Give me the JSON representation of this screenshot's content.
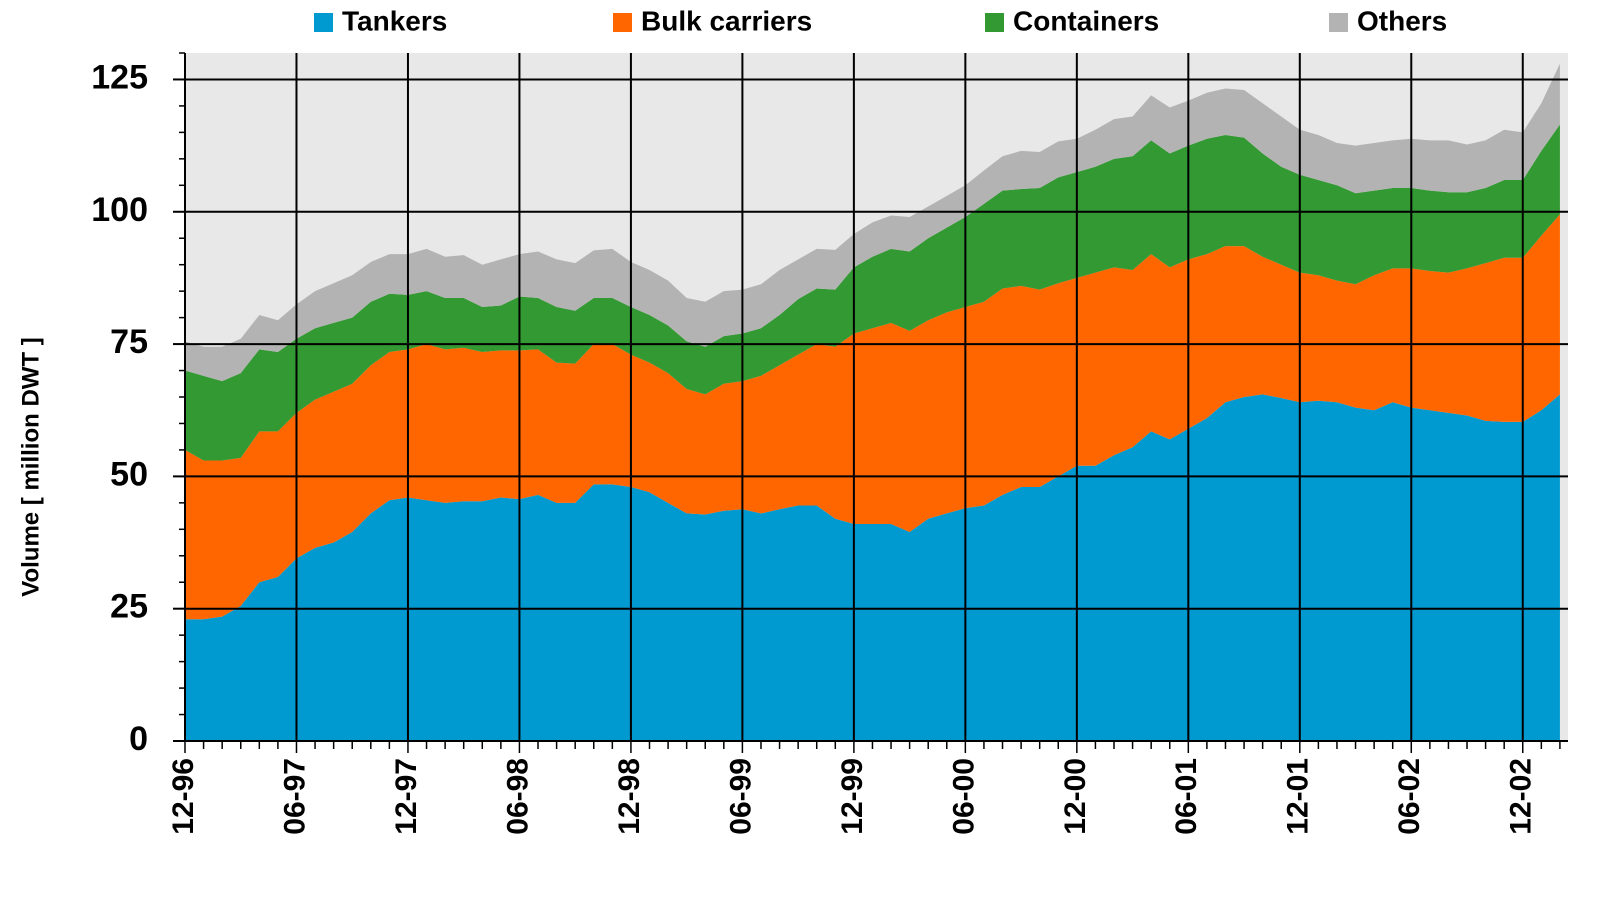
{
  "chart_data": {
    "type": "stacked_area",
    "y_label": "Volume [ million DWT ]",
    "categories": [
      "12-96",
      null,
      null,
      null,
      null,
      null,
      "06-97",
      null,
      null,
      null,
      null,
      null,
      "12-97",
      null,
      null,
      null,
      null,
      null,
      "06-98",
      null,
      null,
      null,
      null,
      null,
      "12-98",
      null,
      null,
      null,
      null,
      null,
      "06-99",
      null,
      null,
      null,
      null,
      null,
      "12-99",
      null,
      null,
      null,
      null,
      null,
      "06-00",
      null,
      null,
      null,
      null,
      null,
      "12-00",
      null,
      null,
      null,
      null,
      null,
      "06-01",
      null,
      null,
      null,
      null,
      null,
      "12-01",
      null,
      null,
      null,
      null,
      null,
      "06-02",
      null,
      null,
      null,
      null,
      null,
      "12-02",
      null,
      null
    ],
    "series": [
      {
        "name": "Tankers",
        "color": "#0099d0",
        "values": [
          23,
          23,
          23.5,
          25.5,
          30,
          31,
          34.5,
          36.5,
          37.5,
          39.5,
          43,
          45.5,
          46,
          45.5,
          45,
          45.3,
          45.3,
          46,
          45.7,
          46.5,
          45,
          45,
          48.5,
          48.5,
          48,
          47,
          45,
          43,
          42.8,
          43.5,
          43.8,
          43,
          43.8,
          44.5,
          44.5,
          42,
          41,
          41,
          41,
          39.5,
          42,
          43,
          44,
          44.5,
          46.5,
          48,
          48,
          50,
          52,
          52,
          54,
          55.5,
          58.5,
          57,
          59,
          61,
          64,
          65,
          65.5,
          64.8,
          64,
          64.3,
          64,
          63,
          62.5,
          64,
          63,
          62.5,
          62,
          61.5,
          60.5,
          60.3,
          60.3,
          62.5,
          65.5
        ]
      },
      {
        "name": "Bulk carriers",
        "color": "#ff6600",
        "values": [
          32,
          30,
          29.5,
          28,
          28.5,
          27.5,
          27.5,
          28,
          28.5,
          28,
          28,
          28,
          28,
          29.5,
          29,
          29,
          28.2,
          27.8,
          28.1,
          27.5,
          26.5,
          26.3,
          26.5,
          26.5,
          25,
          24.5,
          24.5,
          23.5,
          22.7,
          24,
          24.2,
          26,
          27.2,
          28.5,
          30.5,
          32.5,
          36,
          37,
          38,
          38,
          37.5,
          38,
          38,
          38.5,
          39,
          38,
          37.3,
          36.5,
          35.5,
          36.5,
          35.5,
          33.5,
          33.5,
          32.5,
          32,
          31,
          29.5,
          28.5,
          26,
          25.2,
          24.5,
          23.7,
          23,
          23.3,
          25.5,
          25.3,
          26.3,
          26.3,
          26.5,
          27.8,
          29.8,
          31,
          31,
          33,
          34
        ]
      },
      {
        "name": "Containers",
        "color": "#339933",
        "values": [
          15,
          16,
          15,
          16,
          15.5,
          15,
          14,
          13.5,
          13,
          12.5,
          12,
          11,
          10.3,
          10,
          9.7,
          9.4,
          8.5,
          8.5,
          10.2,
          9.7,
          10.5,
          10,
          8.7,
          8.7,
          9,
          9,
          9,
          9,
          9,
          9,
          9,
          9,
          9.5,
          10.5,
          10.5,
          10.8,
          12.5,
          13.5,
          14,
          15,
          15.5,
          16,
          17,
          18.5,
          18.5,
          18.3,
          19.2,
          20,
          20,
          20,
          20.5,
          21.5,
          21.5,
          21.5,
          21.5,
          21.8,
          21,
          20.5,
          19.5,
          18.5,
          18.5,
          18,
          18,
          17.2,
          16,
          15.2,
          15.2,
          15.2,
          15.2,
          14.4,
          14.2,
          14.7,
          14.7,
          16,
          17
        ]
      },
      {
        "name": "Others",
        "color": "#b3b3b3",
        "values": [
          5.5,
          5.5,
          6.5,
          6.5,
          6.5,
          6,
          6.5,
          7,
          7.5,
          8,
          7.5,
          7.5,
          7.7,
          8,
          7.8,
          8.1,
          8,
          8.7,
          8,
          8.8,
          9,
          9,
          9,
          9.3,
          8.5,
          8.5,
          8.5,
          8.2,
          8.5,
          8.5,
          8.3,
          8.3,
          8.5,
          7.5,
          7.5,
          7.5,
          6.3,
          6.5,
          6.3,
          6.5,
          6,
          6,
          6,
          6.3,
          6.5,
          7.2,
          6.8,
          6.8,
          6.3,
          7,
          7.5,
          7.5,
          8.5,
          8.7,
          8.5,
          8.7,
          8.8,
          9,
          9.5,
          9.5,
          8.5,
          8.5,
          8,
          9,
          9,
          9,
          9.3,
          9.5,
          9.8,
          9,
          9,
          9.5,
          9,
          9,
          11.5
        ]
      }
    ],
    "ylim": [
      0,
      130
    ],
    "yticks": [
      0,
      25,
      50,
      75,
      100,
      125
    ],
    "grid": true,
    "legend": "top"
  }
}
